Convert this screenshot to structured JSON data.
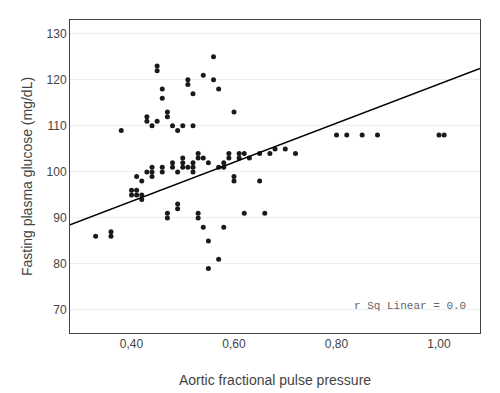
{
  "chart_data": {
    "type": "scatter",
    "x": [
      0.33,
      0.36,
      0.36,
      0.38,
      0.4,
      0.4,
      0.41,
      0.41,
      0.41,
      0.42,
      0.42,
      0.42,
      0.43,
      0.43,
      0.43,
      0.44,
      0.44,
      0.44,
      0.44,
      0.45,
      0.45,
      0.45,
      0.46,
      0.46,
      0.46,
      0.46,
      0.47,
      0.47,
      0.47,
      0.47,
      0.48,
      0.48,
      0.48,
      0.49,
      0.49,
      0.49,
      0.49,
      0.5,
      0.5,
      0.5,
      0.5,
      0.51,
      0.51,
      0.51,
      0.52,
      0.52,
      0.52,
      0.52,
      0.52,
      0.53,
      0.53,
      0.53,
      0.53,
      0.54,
      0.54,
      0.54,
      0.55,
      0.55,
      0.55,
      0.56,
      0.56,
      0.57,
      0.57,
      0.57,
      0.58,
      0.58,
      0.58,
      0.59,
      0.59,
      0.6,
      0.6,
      0.6,
      0.61,
      0.61,
      0.62,
      0.62,
      0.63,
      0.65,
      0.65,
      0.66,
      0.67,
      0.68,
      0.7,
      0.72,
      0.8,
      0.82,
      0.85,
      0.88,
      1.0,
      1.01
    ],
    "values": [
      86,
      86,
      87,
      109,
      95,
      96,
      99,
      95,
      96,
      98,
      95,
      94,
      112,
      111,
      100,
      110,
      101,
      99,
      100,
      122,
      123,
      111,
      116,
      118,
      100,
      101,
      112,
      113,
      90,
      91,
      110,
      101,
      102,
      109,
      100,
      92,
      93,
      110,
      101,
      102,
      103,
      119,
      120,
      101,
      117,
      110,
      102,
      101,
      100,
      104,
      103,
      91,
      90,
      121,
      103,
      88,
      85,
      79,
      102,
      125,
      120,
      118,
      101,
      81,
      102,
      101,
      88,
      103,
      104,
      113,
      99,
      98,
      103,
      104,
      104,
      91,
      103,
      104,
      98,
      91,
      104,
      105,
      105,
      104,
      108,
      108,
      108,
      108,
      108,
      108
    ],
    "color": "#1a1a1a",
    "regression": {
      "type": "line",
      "x": [
        0.28,
        1.08
      ],
      "values": [
        88.5,
        122.5
      ],
      "color": "#000000"
    },
    "xlabel": "Aortic fractional pulse pressure",
    "ylabel": "Fasting plasma glucose (mg/dL)",
    "annotation": "r Sq Linear = 0.0",
    "xlim": [
      0.28,
      1.08
    ],
    "ylim": [
      65,
      133
    ],
    "xticks": [
      {
        "value": 0.4,
        "label": "0,40"
      },
      {
        "value": 0.6,
        "label": "0,60"
      },
      {
        "value": 0.8,
        "label": "0,80"
      },
      {
        "value": 1.0,
        "label": "1,00"
      }
    ],
    "yticks": [
      70,
      80,
      90,
      100,
      110,
      120,
      130
    ],
    "grid": "y"
  }
}
